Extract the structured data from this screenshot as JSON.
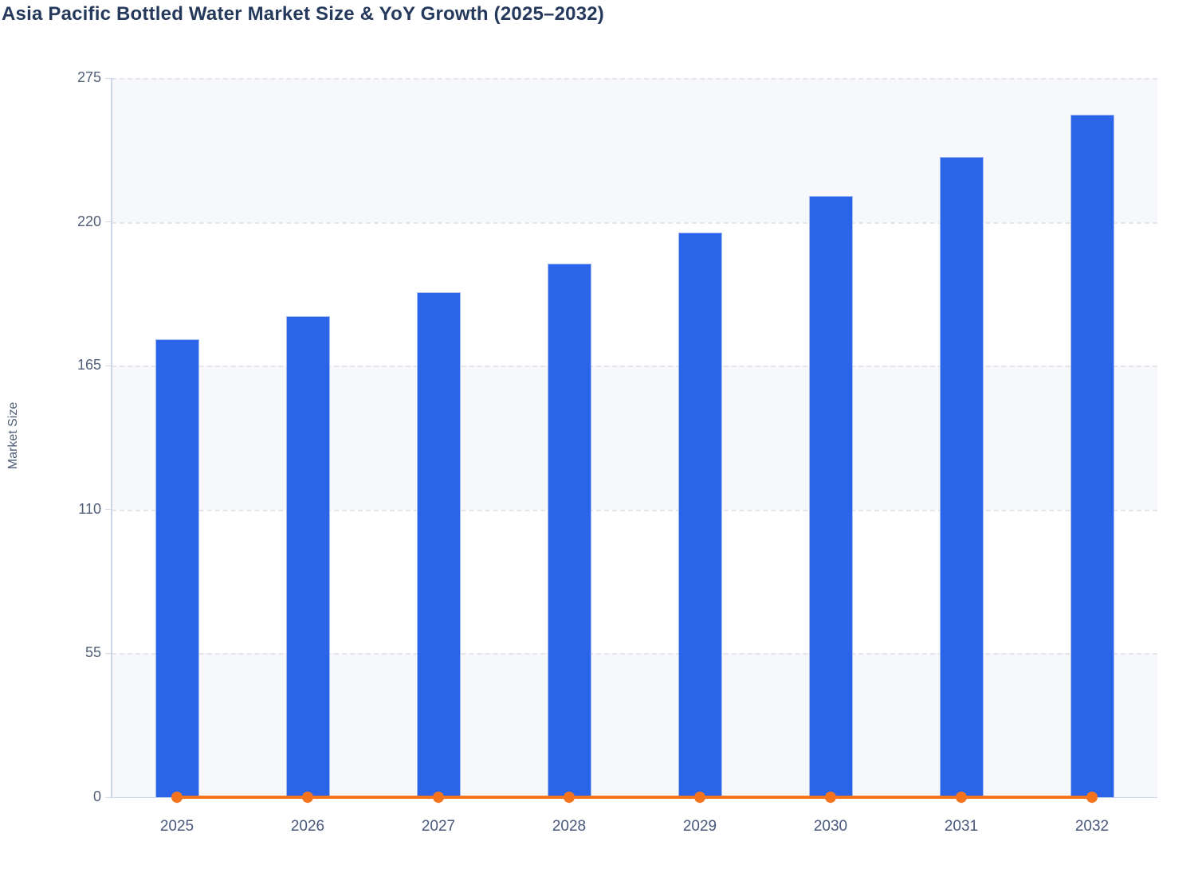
{
  "header": {
    "title": "Asia Pacific Bottled Water Market Size & YoY Growth (2025–2032)"
  },
  "chart_data": {
    "type": "bar",
    "title": "Asia Pacific Bottled Water Market Size & YoY Growth (2025–2032)",
    "xlabel": "",
    "ylabel": "Market Size",
    "categories": [
      "2025",
      "2026",
      "2027",
      "2028",
      "2029",
      "2030",
      "2031",
      "2032"
    ],
    "series": [
      {
        "name": "Market Size",
        "type": "bar",
        "color": "#2a65e9",
        "values": [
          175,
          184,
          193,
          204,
          216,
          230,
          245,
          261
        ]
      },
      {
        "name": "YoY Growth",
        "type": "line",
        "color": "#f4731d",
        "values": [
          0,
          0,
          0,
          0,
          0,
          0,
          0,
          0
        ]
      }
    ],
    "ylim": [
      0,
      275
    ],
    "yticks": [
      0,
      55,
      110,
      165,
      220,
      275
    ],
    "grid": "horizontal-dashed",
    "legend": "none",
    "plot_background": "alternating horizontal bands"
  },
  "colors": {
    "bar_fill": "#2a65e9",
    "bar_border": "#a6bbf1",
    "line_orange": "#f4731d",
    "band_light": "#f7f8fb",
    "band_white": "#ffffff",
    "gridline": "#e4e6ec",
    "axis_line": "#ccd5ea",
    "title_text": "#24395b",
    "y_tick_text": "#515f77",
    "x_tick_text": "#48587a",
    "y_axis_title_text": "#4e5e78"
  }
}
